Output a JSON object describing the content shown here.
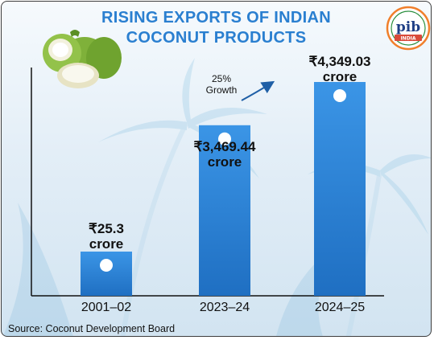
{
  "title": {
    "line1": "RISING EXPORTS OF INDIAN",
    "line2": "COCONUT PRODUCTS"
  },
  "logo": {
    "text": "pib",
    "subtext": "INDIA",
    "icon": "pib-logo-icon"
  },
  "chart_data": {
    "type": "bar",
    "categories": [
      "2001–02",
      "2023–24",
      "2024–25"
    ],
    "values": [
      25.3,
      3469.44,
      4349.03
    ],
    "value_labels": [
      {
        "amount": "₹25.3",
        "unit": "crore"
      },
      {
        "amount": "₹3,469.44",
        "unit": "crore"
      },
      {
        "amount": "₹4,349.03",
        "unit": "crore"
      }
    ],
    "annotation": {
      "line1": "25%",
      "line2": "Growth"
    },
    "title": "RISING EXPORTS OF INDIAN COCONUT PRODUCTS",
    "bar_color": "#2f86dc",
    "accent_color": "#2a7fd0",
    "grid": false
  },
  "source": "Source: Coconut Development Board"
}
